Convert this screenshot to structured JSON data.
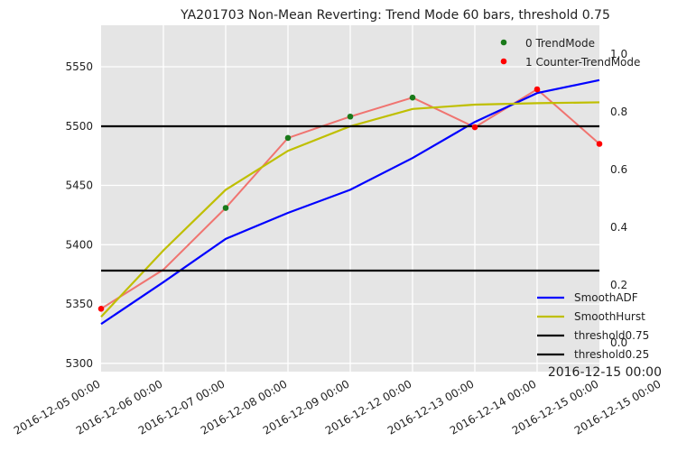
{
  "chart_data": {
    "type": "line",
    "title": "YA201703 Non-Mean Reverting: Trend Mode 60 bars, threshold 0.75",
    "x_ticks": [
      "2016-12-05 00:00",
      "2016-12-06 00:00",
      "2016-12-07 00:00",
      "2016-12-08 00:00",
      "2016-12-09 00:00",
      "2016-12-12 00:00",
      "2016-12-13 00:00",
      "2016-12-14 00:00",
      "2016-12-15 00:00",
      "2016-12-15 00:00"
    ],
    "offset_label": "2016-12-15 00:00",
    "y_left": {
      "range": [
        5293,
        5585
      ],
      "ticks": [
        "5300",
        "5350",
        "5400",
        "5450",
        "5500",
        "5550"
      ],
      "tick_values": [
        5300,
        5350,
        5400,
        5450,
        5500,
        5550
      ]
    },
    "y_right": {
      "range": [
        -0.1,
        1.1
      ],
      "ticks": [
        "0.0",
        "0.2",
        "0.4",
        "0.6",
        "0.8",
        "1.0"
      ],
      "tick_values": [
        0.0,
        0.2,
        0.4,
        0.6,
        0.8,
        1.0
      ]
    },
    "grid": true,
    "price": {
      "axis": "left",
      "color": "#f07470",
      "x": [
        0,
        1,
        2,
        3,
        4,
        5,
        6,
        7,
        8
      ],
      "values": [
        5346,
        5379,
        5431,
        5490,
        5508,
        5524,
        5499,
        5531,
        5485
      ]
    },
    "markers": [
      {
        "name": "0 TrendMode",
        "color": "#1a7a1a",
        "points": [
          [
            2,
            5431
          ],
          [
            3,
            5490
          ],
          [
            4,
            5508
          ],
          [
            5,
            5524
          ]
        ]
      },
      {
        "name": "1 Counter-TrendMode",
        "color": "#ff0000",
        "points": [
          [
            0,
            5346
          ],
          [
            6,
            5499
          ],
          [
            7,
            5531
          ],
          [
            8,
            5485
          ]
        ]
      }
    ],
    "series": [
      {
        "name": "SmoothADF",
        "axis": "right",
        "color": "#0000ff",
        "x": [
          0,
          1,
          2,
          3,
          4,
          5,
          6,
          7,
          8
        ],
        "values": [
          0.065,
          0.21,
          0.36,
          0.45,
          0.53,
          0.64,
          0.765,
          0.865,
          0.91
        ]
      },
      {
        "name": "SmoothHurst",
        "axis": "right",
        "color": "#bfbf00",
        "x": [
          0,
          1,
          2,
          3,
          4,
          5,
          6,
          7,
          8
        ],
        "values": [
          0.09,
          0.32,
          0.53,
          0.665,
          0.75,
          0.81,
          0.825,
          0.83,
          0.833
        ]
      },
      {
        "name": "threshold0.75",
        "axis": "right",
        "color": "#000000",
        "x": [
          0,
          8
        ],
        "values": [
          0.75,
          0.75
        ]
      },
      {
        "name": "threshold0.25",
        "axis": "right",
        "color": "#000000",
        "x": [
          0,
          8
        ],
        "values": [
          0.25,
          0.25
        ]
      }
    ],
    "legend_placement": [
      "top-right",
      "bottom-right"
    ]
  }
}
